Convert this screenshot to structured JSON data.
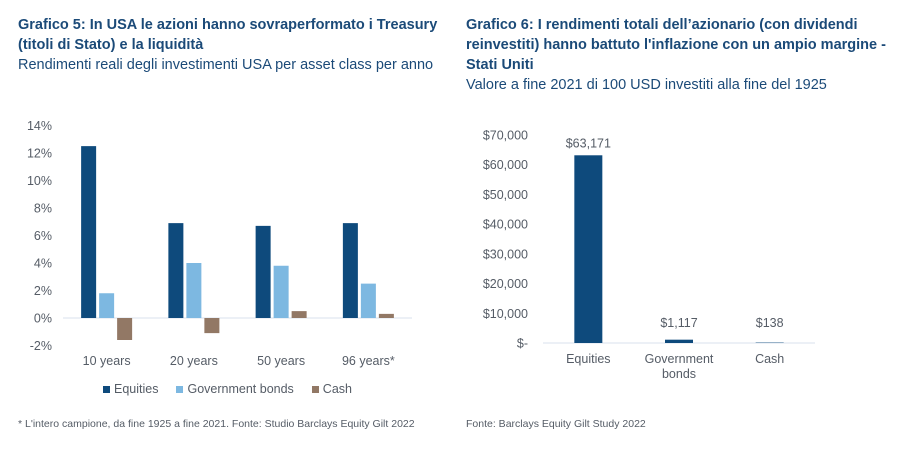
{
  "colors": {
    "title": "#1b4a78",
    "equities": "#0e4a7c",
    "government_bonds": "#7db8e1",
    "cash": "#927865",
    "axis_line": "#d9e2ec",
    "text": "#555c66"
  },
  "left": {
    "title_line1": "Grafico 5: In USA le azioni hanno sovraperformato i Treasury",
    "title_line2": "(titoli di Stato) e la liquidità",
    "subtitle": "Rendimenti reali degli investimenti USA per asset class per anno",
    "source": "* L'intero campione, da fine 1925 a fine 2021. Fonte: Studio Barclays Equity Gilt 2022"
  },
  "right": {
    "title_line1": "Grafico 6: I rendimenti totali dell’azionario (con dividendi",
    "title_line2": "reinvestiti) hanno battuto l'inflazione con un ampio margine -",
    "title_line3": "Stati Uniti",
    "subtitle": "Valore a fine 2021 di 100 USD investiti alla fine del 1925",
    "source": "Fonte: Barclays Equity Gilt Study 2022"
  },
  "chart_data": [
    {
      "type": "bar",
      "title": "Grafico 5: In USA le azioni hanno sovraperformato i Treasury (titoli di Stato) e la liquidità",
      "subtitle": "Rendimenti reali degli investimenti USA per asset class per anno",
      "categories": [
        "10 years",
        "20 years",
        "50 years",
        "96 years*"
      ],
      "series": [
        {
          "name": "Equities",
          "values": [
            12.5,
            6.9,
            6.7,
            6.9
          ]
        },
        {
          "name": "Government bonds",
          "values": [
            1.8,
            4.0,
            3.8,
            2.5
          ]
        },
        {
          "name": "Cash",
          "values": [
            -1.6,
            -1.1,
            0.5,
            0.3
          ]
        }
      ],
      "yticks": [
        "14%",
        "12%",
        "10%",
        "8%",
        "6%",
        "4%",
        "2%",
        "0%",
        "-2%"
      ],
      "ytick_values": [
        14,
        12,
        10,
        8,
        6,
        4,
        2,
        0,
        -2
      ],
      "ylim": [
        -2,
        14
      ],
      "xlabel": "",
      "ylabel": "",
      "grid": false,
      "legend": "bottom",
      "unit": "%"
    },
    {
      "type": "bar",
      "title": "Grafico 6: I rendimenti totali dell’azionario (con dividendi reinvestiti) hanno battuto l'inflazione con un ampio margine - Stati Uniti",
      "subtitle": "Valore a fine 2021 di 100 USD investiti alla fine del 1925",
      "categories": [
        "Equities",
        "Government bonds",
        "Cash"
      ],
      "category_lines": [
        [
          "Equities"
        ],
        [
          "Government",
          "bonds"
        ],
        [
          "Cash"
        ]
      ],
      "values": [
        63171,
        1117,
        138
      ],
      "data_labels": [
        "$63,171",
        "$1,117",
        "$138"
      ],
      "yticks": [
        "$70,000",
        "$60,000",
        "$50,000",
        "$40,000",
        "$30,000",
        "$20,000",
        "$10,000",
        "$-"
      ],
      "ytick_values": [
        70000,
        60000,
        50000,
        40000,
        30000,
        20000,
        10000,
        0
      ],
      "ylim": [
        0,
        70000
      ],
      "xlabel": "",
      "ylabel": "",
      "grid": false,
      "legend": "none"
    }
  ]
}
